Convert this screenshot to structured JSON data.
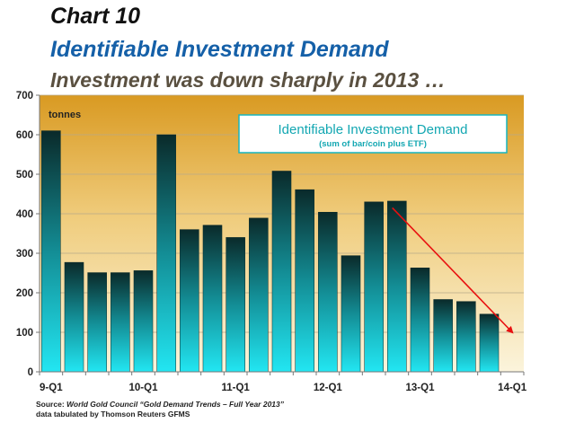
{
  "header": {
    "chart_label": "Chart 10",
    "title": "Identifiable Investment Demand",
    "subtitle": "Investment was down sharply in 2013 …"
  },
  "source": {
    "prefix": "Source: ",
    "publication": "World Gold Council “Gold Demand Trends – Full Year 2013”",
    "line2": "data tabulated by Thomson Reuters GFMS"
  },
  "colors": {
    "plot_bg_top": "#d99a22",
    "plot_bg_bottom": "#fbf4dc",
    "bar_top": "#0a2a2a",
    "bar_bottom": "#22e6f2",
    "trend_arrow": "#e81010",
    "title": "#1560a8"
  },
  "chart_data": {
    "type": "bar",
    "title": "Identifiable Investment Demand",
    "subtitle": "(sum of bar/coin plus ETF)",
    "unit_label": "tonnes",
    "ylim": [
      0,
      700
    ],
    "y_ticks": [
      0,
      100,
      200,
      300,
      400,
      500,
      600,
      700
    ],
    "x_tick_labels": [
      "9-Q1",
      "10-Q1",
      "11-Q1",
      "12-Q1",
      "13-Q1",
      "14-Q1"
    ],
    "categories": [
      "2009-Q1",
      "2009-Q2",
      "2009-Q3",
      "2009-Q4",
      "2010-Q1",
      "2010-Q2",
      "2010-Q3",
      "2010-Q4",
      "2011-Q1",
      "2011-Q2",
      "2011-Q3",
      "2011-Q4",
      "2012-Q1",
      "2012-Q2",
      "2012-Q3",
      "2012-Q4",
      "2013-Q1",
      "2013-Q2",
      "2013-Q3",
      "2013-Q4",
      "2014-Q1"
    ],
    "values": [
      610,
      277,
      251,
      251,
      256,
      600,
      360,
      371,
      340,
      389,
      508,
      461,
      404,
      294,
      430,
      432,
      263,
      183,
      178,
      146,
      null
    ],
    "grid": true,
    "legend": "none",
    "annotations": [
      {
        "type": "trend-arrow",
        "from": {
          "x": "2012-Q4",
          "y": 415
        },
        "to": {
          "x": "2014-Q1",
          "y": 100
        }
      }
    ]
  }
}
